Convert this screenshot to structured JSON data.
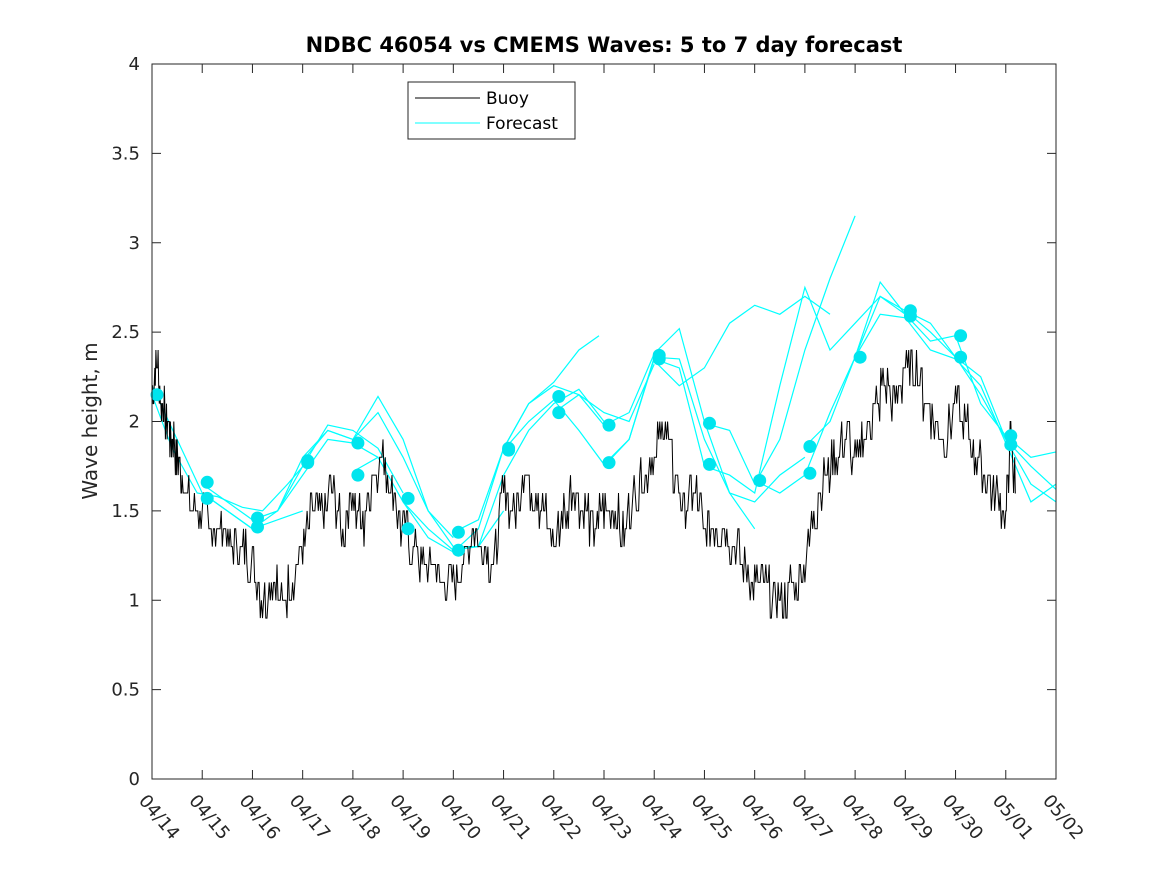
{
  "chart_data": {
    "type": "line",
    "title": "NDBC 46054 vs CMEMS Waves: 5 to 7 day forecast",
    "xlabel": "",
    "ylabel": "Wave height, m",
    "xlim": [
      "04/14",
      "05/02"
    ],
    "ylim": [
      0,
      4
    ],
    "yticks": [
      0,
      0.5,
      1,
      1.5,
      2,
      2.5,
      3,
      3.5,
      4
    ],
    "yticklabels": [
      "0",
      "0.5",
      "1",
      "1.5",
      "2",
      "2.5",
      "3",
      "3.5",
      "4"
    ],
    "xticks": [
      0,
      1,
      2,
      3,
      4,
      5,
      6,
      7,
      8,
      9,
      10,
      11,
      12,
      13,
      14,
      15,
      16,
      17,
      18
    ],
    "xticklabels": [
      "04/14",
      "04/15",
      "04/16",
      "04/17",
      "04/18",
      "04/19",
      "04/20",
      "04/21",
      "04/22",
      "04/23",
      "04/24",
      "04/25",
      "04/26",
      "04/27",
      "04/28",
      "04/29",
      "04/30",
      "05/01",
      "05/02"
    ],
    "legend": {
      "placement": "top-left",
      "entries": [
        "Buoy",
        "Forecast"
      ]
    },
    "colors": {
      "buoy": "#000000",
      "forecast": "#00ffff",
      "markers": "#00e5ee"
    },
    "buoy": {
      "name": "Buoy",
      "x": [
        0,
        0.1,
        0.2,
        0.3,
        0.4,
        0.5,
        0.6,
        0.8,
        1.0,
        1.2,
        1.4,
        1.6,
        1.8,
        2.0,
        2.2,
        2.4,
        2.6,
        2.8,
        3.0,
        3.2,
        3.4,
        3.6,
        3.8,
        4.0,
        4.2,
        4.4,
        4.6,
        4.8,
        5.0,
        5.2,
        5.4,
        5.6,
        5.8,
        6.0,
        6.2,
        6.4,
        6.6,
        6.8,
        7.0,
        7.2,
        7.4,
        7.6,
        7.8,
        8.0,
        8.2,
        8.4,
        8.6,
        8.8,
        9.0,
        9.2,
        9.4,
        9.6,
        9.8,
        10.0,
        10.2,
        10.4,
        10.6,
        10.8,
        11.0,
        11.2,
        11.4,
        11.6,
        11.8,
        12.0,
        12.2,
        12.4,
        12.6,
        12.8,
        13.0,
        13.2,
        13.4,
        13.6,
        13.8,
        14.0,
        14.2,
        14.4,
        14.6,
        14.8,
        15.0,
        15.2,
        15.4,
        15.6,
        15.8,
        16.0,
        16.2,
        16.4,
        16.6,
        16.8,
        17.0,
        17.1,
        17.2
      ],
      "y": [
        2.2,
        2.3,
        2.1,
        2.0,
        1.9,
        1.8,
        1.7,
        1.5,
        1.5,
        1.4,
        1.4,
        1.3,
        1.3,
        1.2,
        1.0,
        1.1,
        1.0,
        1.1,
        1.3,
        1.5,
        1.5,
        1.6,
        1.4,
        1.6,
        1.4,
        1.7,
        1.8,
        1.6,
        1.4,
        1.3,
        1.2,
        1.2,
        1.1,
        1.1,
        1.2,
        1.4,
        1.3,
        1.2,
        1.6,
        1.5,
        1.7,
        1.6,
        1.5,
        1.3,
        1.5,
        1.6,
        1.5,
        1.4,
        1.5,
        1.5,
        1.4,
        1.6,
        1.7,
        1.8,
        2.0,
        1.7,
        1.5,
        1.6,
        1.4,
        1.4,
        1.4,
        1.3,
        1.2,
        1.1,
        1.1,
        1.0,
        1.0,
        1.1,
        1.2,
        1.5,
        1.7,
        1.8,
        1.9,
        1.8,
        1.9,
        2.1,
        2.2,
        2.1,
        2.3,
        2.3,
        2.1,
        2.0,
        1.9,
        2.1,
        2.0,
        1.8,
        1.7,
        1.6,
        1.5,
        1.9,
        1.6
      ]
    },
    "forecast_series": [
      {
        "x": [
          0,
          0.5,
          1.0,
          1.5,
          2.0,
          2.5,
          3.0
        ],
        "y": [
          2.2,
          1.9,
          1.6,
          1.5,
          1.4,
          1.45,
          1.5
        ]
      },
      {
        "x": [
          0,
          0.4,
          0.9,
          1.3,
          1.8,
          2.2,
          2.7,
          3.1
        ],
        "y": [
          2.15,
          1.85,
          1.6,
          1.58,
          1.52,
          1.5,
          1.65,
          1.78
        ]
      },
      {
        "x": [
          1.0,
          1.5,
          2.0,
          2.5,
          3.0,
          3.5,
          4.0,
          4.5
        ],
        "y": [
          1.65,
          1.55,
          1.45,
          1.5,
          1.7,
          1.9,
          1.88,
          1.8
        ]
      },
      {
        "x": [
          1.0,
          1.5,
          2.0,
          2.5,
          3.0,
          3.5,
          4.0,
          4.5,
          5.0
        ],
        "y": [
          1.6,
          1.5,
          1.4,
          1.5,
          1.75,
          1.98,
          1.95,
          1.85,
          1.6
        ]
      },
      {
        "x": [
          2.0,
          2.5,
          3.0,
          3.5,
          4.0,
          4.5,
          5.0,
          5.5,
          6.0
        ],
        "y": [
          1.45,
          1.5,
          1.8,
          1.95,
          1.9,
          2.05,
          1.8,
          1.5,
          1.35
        ]
      },
      {
        "x": [
          3.0,
          3.5,
          4.0,
          4.5,
          5.0,
          5.5,
          6.0,
          6.5,
          7.0
        ],
        "y": [
          1.78,
          1.95,
          1.9,
          2.14,
          1.9,
          1.5,
          1.3,
          1.3,
          1.5
        ]
      },
      {
        "x": [
          4.0,
          4.5,
          5.0,
          5.5,
          6.0,
          6.5,
          7.0,
          7.5,
          8.0,
          8.5,
          8.9
        ],
        "y": [
          1.72,
          1.8,
          1.55,
          1.35,
          1.27,
          1.4,
          1.85,
          2.1,
          2.22,
          2.4,
          2.48
        ]
      },
      {
        "x": [
          5.0,
          5.5,
          6.0,
          6.5,
          7.0,
          7.5,
          8.0,
          8.5,
          9.0
        ],
        "y": [
          1.55,
          1.4,
          1.28,
          1.3,
          1.7,
          1.95,
          2.1,
          2.18,
          2.0
        ]
      },
      {
        "x": [
          6.0,
          6.5,
          7.0,
          7.5,
          8.0,
          8.5,
          9.0,
          9.5,
          10.0
        ],
        "y": [
          1.38,
          1.45,
          1.85,
          2.1,
          2.2,
          2.15,
          2.05,
          2.0,
          2.32
        ]
      },
      {
        "x": [
          7.0,
          7.5,
          8.0,
          8.5,
          9.0,
          9.5,
          10.0,
          10.5,
          11.0,
          11.5,
          12.0
        ],
        "y": [
          1.84,
          2.0,
          2.12,
          1.95,
          1.76,
          1.9,
          2.36,
          2.35,
          1.9,
          1.6,
          1.4
        ]
      },
      {
        "x": [
          8.0,
          8.5,
          9.0,
          9.5,
          10.0,
          10.5,
          11.0,
          11.5,
          12.0,
          12.5,
          13.0
        ],
        "y": [
          2.05,
          2.15,
          1.98,
          2.05,
          2.38,
          2.52,
          2.0,
          1.6,
          1.55,
          1.7,
          1.8
        ]
      },
      {
        "x": [
          9.0,
          9.5,
          10.0,
          10.5,
          11.0,
          11.5,
          12.0,
          12.5,
          13.0,
          13.5,
          14.0,
          14.5,
          15.0
        ],
        "y": [
          1.75,
          1.9,
          2.35,
          2.3,
          1.75,
          1.7,
          1.6,
          2.2,
          2.75,
          2.4,
          2.55,
          2.7,
          2.6
        ]
      },
      {
        "x": [
          10.0,
          10.5,
          11.0,
          11.5,
          12.0,
          12.5,
          13.0,
          13.5
        ],
        "y": [
          2.34,
          2.2,
          2.3,
          2.55,
          2.65,
          2.6,
          2.7,
          2.6
        ]
      },
      {
        "x": [
          11.0,
          11.5,
          12.0,
          12.5,
          13.0,
          13.5,
          14.0
        ],
        "y": [
          1.99,
          1.95,
          1.65,
          1.9,
          2.4,
          2.8,
          3.15
        ]
      },
      {
        "x": [
          12.0,
          12.5,
          13.0,
          13.5,
          14.0,
          14.5,
          15.0,
          15.5,
          16.0,
          16.5,
          17.0,
          17.5,
          18.0
        ],
        "y": [
          1.67,
          1.6,
          1.7,
          2.05,
          2.36,
          2.7,
          2.62,
          2.5,
          2.36,
          2.15,
          1.9,
          1.75,
          1.62
        ]
      },
      {
        "x": [
          13.0,
          13.5,
          14.0,
          14.5,
          15.0,
          15.5,
          16.0,
          16.5,
          17.0,
          17.5,
          18.0
        ],
        "y": [
          1.86,
          2.0,
          2.36,
          2.78,
          2.6,
          2.45,
          2.48,
          2.1,
          1.92,
          1.8,
          1.83
        ]
      },
      {
        "x": [
          14.0,
          14.5,
          15.0,
          15.5,
          16.0,
          16.5,
          17.0,
          17.5,
          18.0
        ],
        "y": [
          2.36,
          2.6,
          2.58,
          2.4,
          2.35,
          2.2,
          1.88,
          1.55,
          1.65
        ]
      },
      {
        "x": [
          15.0,
          15.5,
          16.0,
          16.5,
          17.0,
          17.5,
          18.0
        ],
        "y": [
          2.62,
          2.55,
          2.36,
          2.25,
          1.9,
          1.65,
          1.55
        ]
      }
    ],
    "forecast_markers": {
      "x": [
        0.1,
        1.1,
        1.1,
        2.1,
        2.1,
        3.1,
        3.1,
        4.1,
        4.1,
        5.1,
        5.1,
        6.1,
        6.1,
        7.1,
        7.1,
        8.1,
        8.1,
        9.1,
        9.1,
        10.1,
        10.1,
        11.1,
        11.1,
        12.1,
        13.1,
        13.1,
        14.1,
        15.1,
        15.1,
        16.1,
        16.1,
        17.1,
        17.1
      ],
      "y": [
        2.15,
        1.66,
        1.57,
        1.46,
        1.41,
        1.78,
        1.77,
        1.88,
        1.7,
        1.57,
        1.4,
        1.38,
        1.28,
        1.84,
        1.85,
        2.14,
        2.05,
        1.98,
        1.77,
        2.37,
        2.35,
        1.99,
        1.76,
        1.67,
        1.86,
        1.71,
        2.36,
        2.62,
        2.59,
        2.48,
        2.36,
        1.92,
        1.87
      ]
    }
  }
}
